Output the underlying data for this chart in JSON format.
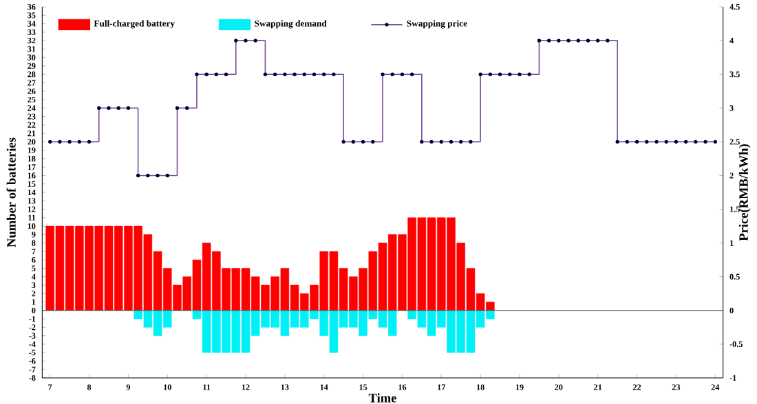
{
  "chart_data": {
    "type": "bar",
    "xlabel": "Time",
    "ylabel": "Number of batteries",
    "y2label": "Price(RMB/kWh)",
    "xlim": [
      6.8,
      24.2
    ],
    "xticks": [
      7,
      8,
      9,
      10,
      11,
      12,
      13,
      14,
      15,
      16,
      17,
      18,
      19,
      20,
      21,
      22,
      23,
      24
    ],
    "ylim": [
      -8,
      36
    ],
    "yticks": [
      -8,
      -7,
      -6,
      -5,
      -4,
      -3,
      -2,
      -1,
      0,
      1,
      2,
      3,
      4,
      5,
      6,
      7,
      8,
      9,
      10,
      11,
      12,
      13,
      14,
      15,
      16,
      17,
      18,
      19,
      20,
      21,
      22,
      23,
      24,
      25,
      26,
      27,
      28,
      29,
      30,
      31,
      32,
      33,
      34,
      35,
      36
    ],
    "y2lim": [
      -1,
      4.5
    ],
    "y2ticks": [
      -1,
      -0.5,
      0,
      0.5,
      1,
      1.5,
      2,
      2.5,
      3,
      3.5,
      4,
      4.5
    ],
    "legend": "top left",
    "stacked": true,
    "marker": "circle",
    "grid": false,
    "ref_lines": [
      {
        "axis": "y",
        "value": 0,
        "color": "#555555"
      }
    ],
    "series": [
      {
        "name": "Full-charged battery",
        "color": "#ff0000",
        "x": [
          7,
          7.25,
          7.5,
          7.75,
          8,
          8.25,
          8.5,
          8.75,
          9,
          9.25,
          9.5,
          9.75,
          10,
          10.25,
          10.5,
          10.75,
          11,
          11.25,
          11.5,
          11.75,
          12,
          12.25,
          12.5,
          12.75,
          13,
          13.25,
          13.5,
          13.75,
          14,
          14.25,
          14.5,
          14.75,
          15,
          15.25,
          15.5,
          15.75,
          16,
          16.25,
          16.5,
          16.75,
          17,
          17.25,
          17.5,
          17.75,
          18,
          18.25
        ],
        "values": [
          10,
          10,
          10,
          10,
          10,
          10,
          10,
          10,
          10,
          10,
          9,
          7,
          5,
          3,
          4,
          6,
          8,
          7,
          5,
          5,
          5,
          4,
          3,
          4,
          5,
          3,
          2,
          3,
          7,
          7,
          5,
          4,
          5,
          7,
          8,
          9,
          9,
          11,
          11,
          11,
          11,
          11,
          8,
          5,
          2,
          1
        ]
      },
      {
        "name": "Swapping demand",
        "color": "#00f0f8",
        "x": [
          7,
          7.25,
          7.5,
          7.75,
          8,
          8.25,
          8.5,
          8.75,
          9,
          9.25,
          9.5,
          9.75,
          10,
          10.25,
          10.5,
          10.75,
          11,
          11.25,
          11.5,
          11.75,
          12,
          12.25,
          12.5,
          12.75,
          13,
          13.25,
          13.5,
          13.75,
          14,
          14.25,
          14.5,
          14.75,
          15,
          15.25,
          15.5,
          15.75,
          16,
          16.25,
          16.5,
          16.75,
          17,
          17.25,
          17.5,
          17.75,
          18,
          18.25
        ],
        "values": [
          0,
          0,
          0,
          0,
          0,
          0,
          0,
          0,
          0,
          -1,
          -2,
          -3,
          -2,
          0,
          0,
          -1,
          -5,
          -5,
          -5,
          -5,
          -5,
          -3,
          -2,
          -2,
          -3,
          -2,
          -2,
          -1,
          -3,
          -5,
          -2,
          -2,
          -3,
          -1,
          -2,
          -3,
          0,
          -1,
          -2,
          -3,
          -2,
          -5,
          -5,
          -5,
          -2,
          -1
        ]
      },
      {
        "name": "Swapping price",
        "type": "step",
        "axis": "y2",
        "color": "#7a4a9e",
        "x": [
          7,
          7.25,
          7.5,
          7.75,
          8,
          8.25,
          8.5,
          8.75,
          9,
          9.25,
          9.5,
          9.75,
          10,
          10.25,
          10.5,
          10.75,
          11,
          11.25,
          11.5,
          11.75,
          12,
          12.25,
          12.5,
          12.75,
          13,
          13.25,
          13.5,
          13.75,
          14,
          14.25,
          14.5,
          14.75,
          15,
          15.25,
          15.5,
          15.75,
          16,
          16.25,
          16.5,
          16.75,
          17,
          17.25,
          17.5,
          17.75,
          18,
          18.25,
          18.5,
          18.75,
          19,
          19.25,
          19.5,
          19.75,
          20,
          20.25,
          20.5,
          20.75,
          21,
          21.25,
          21.5,
          21.75,
          22,
          22.25,
          22.5,
          22.75,
          23,
          23.25,
          23.5,
          23.75,
          24
        ],
        "values": [
          2.5,
          2.5,
          2.5,
          2.5,
          2.5,
          3,
          3,
          3,
          3,
          2,
          2,
          2,
          2,
          3,
          3,
          3.5,
          3.5,
          3.5,
          3.5,
          4,
          4,
          4,
          3.5,
          3.5,
          3.5,
          3.5,
          3.5,
          3.5,
          3.5,
          3.5,
          2.5,
          2.5,
          2.5,
          2.5,
          3.5,
          3.5,
          3.5,
          3.5,
          2.5,
          2.5,
          2.5,
          2.5,
          2.5,
          2.5,
          3.5,
          3.5,
          3.5,
          3.5,
          3.5,
          3.5,
          4,
          4,
          4,
          4,
          4,
          4,
          4,
          4,
          2.5,
          2.5,
          2.5,
          2.5,
          2.5,
          2.5,
          2.5,
          2.5,
          2.5,
          2.5,
          2.5
        ]
      }
    ]
  }
}
